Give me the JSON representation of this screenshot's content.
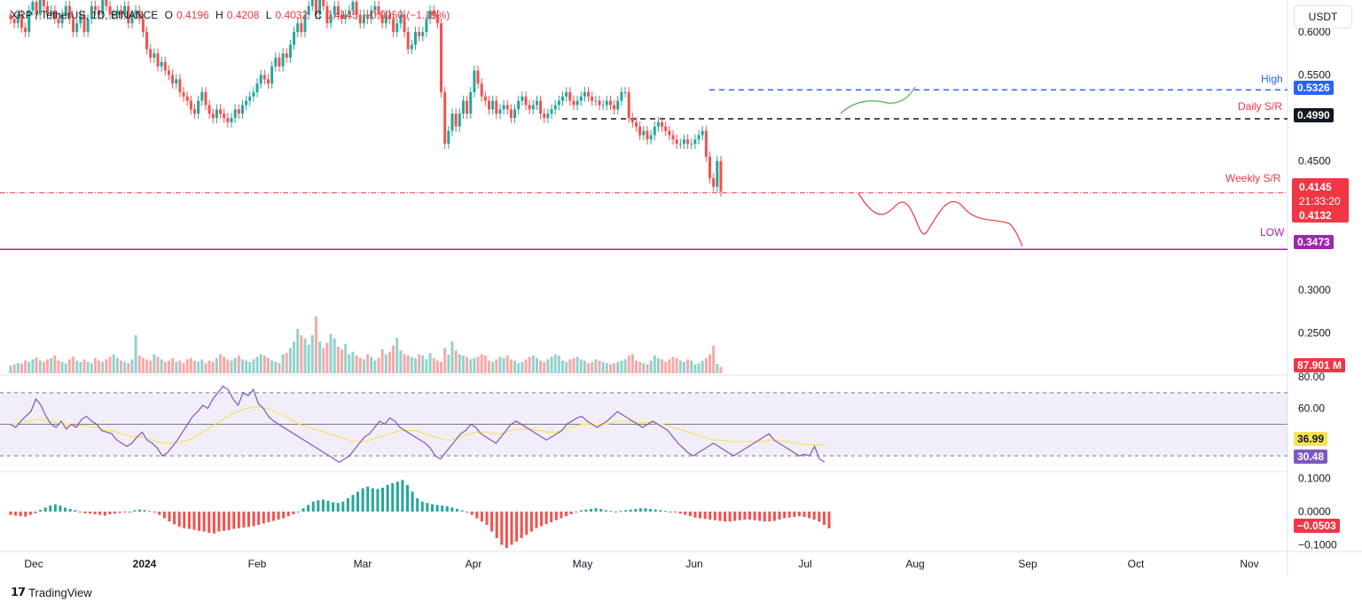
{
  "header": {
    "symbol": "XRP / TetherUS, 1D, BINANCE",
    "open_label": "O",
    "open": "0.4196",
    "high_label": "H",
    "high": "0.4208",
    "low_label": "L",
    "low": "0.4032",
    "close_label": "C",
    "close": "0.4145",
    "change": "−0.0050 (−1.19%)"
  },
  "currency_button": "USDT",
  "branding": "TradingView",
  "annotations": {
    "high": "High",
    "daily_sr": "Daily S/R",
    "weekly_sr": "Weekly S/R",
    "low": "LOW"
  },
  "price_tags": {
    "high": "0.5326",
    "daily_sr": "0.4990",
    "current": "0.4145",
    "countdown": "21:33:20",
    "weekly_sr": "0.4132",
    "low": "0.3473",
    "volume": "87.901 M",
    "rsi_ma": "36.99",
    "rsi": "30.48",
    "macd": "−0.0503"
  },
  "colors": {
    "up": "#26a69a",
    "down": "#ef5350",
    "high_line": "#2962ff",
    "weekly_line": "#f23645",
    "low_line": "#9c27b0",
    "rsi_line": "#7e57c2",
    "rsi_ma": "#f7e15a",
    "projection_up": "#4caf50",
    "projection_down": "#f23645"
  },
  "chart_data": {
    "type": "candlestick",
    "price_axis": {
      "ticks": [
        "0.6000",
        "0.5500",
        "0.4500",
        "0.3000",
        "0.2500"
      ],
      "ylim": [
        0.225,
        0.6
      ]
    },
    "time_axis": [
      "Dec",
      "2024",
      "Feb",
      "Mar",
      "Apr",
      "May",
      "Jun",
      "Jul",
      "Aug",
      "Sep",
      "Oct",
      "Nov"
    ],
    "levels": {
      "high": 0.5326,
      "daily_sr": 0.499,
      "weekly_sr": 0.4132,
      "low": 0.3473
    },
    "closes": [
      0.615,
      0.61,
      0.62,
      0.605,
      0.6,
      0.625,
      0.635,
      0.62,
      0.64,
      0.63,
      0.62,
      0.625,
      0.615,
      0.61,
      0.62,
      0.63,
      0.615,
      0.6,
      0.61,
      0.62,
      0.6,
      0.615,
      0.63,
      0.625,
      0.62,
      0.64,
      0.63,
      0.62,
      0.62,
      0.625,
      0.62,
      0.63,
      0.61,
      0.62,
      0.625,
      0.615,
      0.6,
      0.58,
      0.57,
      0.575,
      0.56,
      0.565,
      0.555,
      0.55,
      0.54,
      0.545,
      0.53,
      0.525,
      0.52,
      0.51,
      0.505,
      0.52,
      0.53,
      0.515,
      0.505,
      0.5,
      0.51,
      0.505,
      0.5,
      0.495,
      0.5,
      0.51,
      0.505,
      0.515,
      0.52,
      0.525,
      0.53,
      0.54,
      0.55,
      0.545,
      0.54,
      0.56,
      0.57,
      0.56,
      0.575,
      0.57,
      0.585,
      0.6,
      0.61,
      0.6,
      0.62,
      0.63,
      0.64,
      0.62,
      0.64,
      0.63,
      0.61,
      0.62,
      0.63,
      0.62,
      0.615,
      0.62,
      0.625,
      0.635,
      0.62,
      0.61,
      0.62,
      0.615,
      0.625,
      0.63,
      0.62,
      0.61,
      0.62,
      0.615,
      0.6,
      0.61,
      0.62,
      0.6,
      0.58,
      0.585,
      0.6,
      0.595,
      0.6,
      0.615,
      0.625,
      0.62,
      0.61,
      0.53,
      0.47,
      0.485,
      0.505,
      0.49,
      0.505,
      0.52,
      0.505,
      0.53,
      0.555,
      0.54,
      0.525,
      0.52,
      0.51,
      0.52,
      0.505,
      0.51,
      0.515,
      0.51,
      0.5,
      0.51,
      0.52,
      0.525,
      0.515,
      0.51,
      0.515,
      0.52,
      0.505,
      0.5,
      0.505,
      0.51,
      0.515,
      0.52,
      0.525,
      0.53,
      0.52,
      0.515,
      0.52,
      0.525,
      0.53,
      0.525,
      0.52,
      0.52,
      0.515,
      0.515,
      0.52,
      0.515,
      0.51,
      0.52,
      0.53,
      0.53,
      0.5,
      0.495,
      0.49,
      0.48,
      0.485,
      0.475,
      0.48,
      0.49,
      0.495,
      0.49,
      0.485,
      0.48,
      0.475,
      0.47,
      0.47,
      0.475,
      0.47,
      0.47,
      0.475,
      0.48,
      0.485,
      0.455,
      0.43,
      0.42,
      0.45,
      0.4145
    ],
    "volume": [
      12,
      14,
      16,
      15,
      20,
      18,
      22,
      25,
      20,
      18,
      22,
      24,
      28,
      20,
      18,
      16,
      22,
      26,
      20,
      18,
      22,
      18,
      16,
      24,
      20,
      18,
      22,
      26,
      30,
      24,
      20,
      18,
      16,
      22,
      60,
      28,
      24,
      22,
      20,
      30,
      26,
      22,
      18,
      20,
      24,
      18,
      20,
      16,
      22,
      24,
      20,
      18,
      22,
      16,
      20,
      18,
      24,
      30,
      26,
      22,
      20,
      24,
      28,
      22,
      20,
      18,
      22,
      26,
      30,
      28,
      24,
      20,
      18,
      16,
      30,
      32,
      40,
      50,
      70,
      60,
      55,
      45,
      60,
      90,
      50,
      40,
      48,
      62,
      55,
      42,
      38,
      46,
      30,
      34,
      28,
      24,
      22,
      30,
      26,
      20,
      24,
      38,
      30,
      34,
      44,
      56,
      36,
      30,
      28,
      26,
      24,
      30,
      28,
      22,
      32,
      24,
      20,
      18,
      40,
      30,
      50,
      36,
      30,
      28,
      26,
      22,
      24,
      26,
      30,
      28,
      20,
      18,
      22,
      26,
      24,
      28,
      22,
      20,
      16,
      18,
      22,
      26,
      28,
      24,
      20,
      18,
      22,
      26,
      30,
      28,
      20,
      18,
      22,
      24,
      26,
      22,
      20,
      16,
      18,
      22,
      20,
      18,
      16,
      14,
      16,
      18,
      20,
      22,
      28,
      30,
      20,
      18,
      16,
      14,
      20,
      28,
      24,
      22,
      18,
      22,
      26,
      24,
      20,
      18,
      22,
      20,
      14,
      16,
      20,
      24,
      30,
      44,
      15,
      10
    ],
    "rsi": [
      50,
      48,
      52,
      55,
      58,
      66,
      62,
      55,
      50,
      48,
      52,
      47,
      50,
      48,
      53,
      55,
      52,
      50,
      46,
      45,
      44,
      40,
      38,
      36,
      38,
      42,
      45,
      40,
      38,
      35,
      30,
      32,
      36,
      40,
      45,
      50,
      55,
      58,
      62,
      60,
      66,
      70,
      74,
      72,
      66,
      62,
      70,
      68,
      72,
      63,
      60,
      55,
      52,
      50,
      48,
      46,
      44,
      42,
      40,
      38,
      36,
      34,
      32,
      30,
      28,
      26,
      28,
      30,
      34,
      38,
      42,
      44,
      48,
      52,
      50,
      54,
      52,
      48,
      46,
      44,
      42,
      40,
      38,
      35,
      30,
      28,
      32,
      36,
      40,
      44,
      46,
      50,
      48,
      44,
      42,
      40,
      38,
      42,
      46,
      50,
      52,
      50,
      48,
      46,
      44,
      42,
      40,
      42,
      44,
      46,
      50,
      52,
      54,
      55,
      52,
      50,
      48,
      50,
      52,
      55,
      58,
      56,
      54,
      52,
      50,
      48,
      50,
      52,
      50,
      48,
      46,
      42,
      38,
      35,
      32,
      30,
      32,
      34,
      36,
      38,
      36,
      34,
      32,
      30,
      32,
      34,
      36,
      38,
      40,
      42,
      44,
      40,
      38,
      36,
      34,
      32,
      30,
      31,
      30,
      36,
      28,
      26
    ],
    "rsi_ma": [
      50,
      50,
      51,
      52,
      52,
      53,
      53,
      52,
      52,
      51,
      50,
      50,
      50,
      49,
      49,
      49,
      48,
      48,
      47,
      46,
      46,
      45,
      44,
      43,
      42,
      42,
      42,
      41,
      40,
      39,
      38,
      38,
      38,
      38,
      39,
      40,
      41,
      43,
      45,
      47,
      49,
      51,
      53,
      55,
      57,
      58,
      59,
      60,
      61,
      61,
      60,
      60,
      58,
      57,
      56,
      54,
      52,
      50,
      49,
      48,
      47,
      46,
      45,
      44,
      43,
      42,
      41,
      40,
      39,
      39,
      39,
      40,
      41,
      42,
      43,
      44,
      45,
      46,
      46,
      46,
      46,
      45,
      44,
      43,
      42,
      41,
      40,
      40,
      41,
      42,
      43,
      44,
      45,
      45,
      45,
      44,
      44,
      44,
      45,
      46,
      47,
      47,
      47,
      47,
      46,
      46,
      45,
      45,
      45,
      46,
      47,
      48,
      49,
      50,
      50,
      50,
      50,
      50,
      50,
      51,
      52,
      52,
      52,
      52,
      51,
      51,
      51,
      51,
      50,
      50,
      49,
      48,
      47,
      46,
      45,
      44,
      43,
      42,
      41,
      40,
      40,
      40,
      39,
      39,
      39,
      39,
      39,
      39,
      39,
      39,
      40,
      40,
      40,
      39,
      39,
      38,
      38,
      37,
      37,
      37,
      37,
      37
    ],
    "rsi_ticks": [
      "80.00",
      "60.00"
    ],
    "macd_ticks": [
      "0.1000",
      "0.0000",
      "−0.1000"
    ],
    "macd": [
      -0.01,
      -0.012,
      -0.014,
      -0.015,
      -0.01,
      -0.005,
      0.005,
      0.012,
      0.018,
      0.022,
      0.018,
      0.012,
      0.008,
      0.004,
      -0.002,
      -0.005,
      -0.006,
      -0.008,
      -0.01,
      -0.012,
      -0.008,
      -0.006,
      -0.004,
      -0.002,
      0.0,
      0.004,
      0.006,
      0.004,
      0.002,
      -0.002,
      -0.01,
      -0.02,
      -0.03,
      -0.038,
      -0.045,
      -0.05,
      -0.052,
      -0.055,
      -0.058,
      -0.06,
      -0.064,
      -0.066,
      -0.06,
      -0.058,
      -0.056,
      -0.052,
      -0.05,
      -0.048,
      -0.046,
      -0.044,
      -0.04,
      -0.036,
      -0.032,
      -0.028,
      -0.024,
      -0.02,
      -0.014,
      -0.008,
      0.0,
      0.01,
      0.02,
      0.03,
      0.034,
      0.036,
      0.032,
      0.028,
      0.026,
      0.03,
      0.04,
      0.05,
      0.06,
      0.07,
      0.075,
      0.07,
      0.068,
      0.072,
      0.08,
      0.085,
      0.09,
      0.095,
      0.08,
      0.06,
      0.04,
      0.03,
      0.026,
      0.022,
      0.02,
      0.018,
      0.016,
      0.012,
      0.008,
      0.004,
      -0.002,
      -0.01,
      -0.02,
      -0.03,
      -0.04,
      -0.06,
      -0.08,
      -0.1,
      -0.11,
      -0.1,
      -0.09,
      -0.08,
      -0.07,
      -0.06,
      -0.05,
      -0.044,
      -0.038,
      -0.032,
      -0.026,
      -0.02,
      -0.014,
      -0.008,
      -0.002,
      0.004,
      0.006,
      0.008,
      0.01,
      0.008,
      0.004,
      0.002,
      0.0,
      0.002,
      0.004,
      0.006,
      0.008,
      0.01,
      0.01,
      0.008,
      0.006,
      0.004,
      0.002,
      0.0,
      -0.002,
      -0.006,
      -0.01,
      -0.014,
      -0.018,
      -0.02,
      -0.022,
      -0.024,
      -0.026,
      -0.028,
      -0.03,
      -0.03,
      -0.028,
      -0.026,
      -0.024,
      -0.024,
      -0.026,
      -0.028,
      -0.03,
      -0.03,
      -0.028,
      -0.024,
      -0.02,
      -0.018,
      -0.016,
      -0.014,
      -0.016,
      -0.02,
      -0.024,
      -0.03,
      -0.04,
      -0.0503
    ]
  }
}
